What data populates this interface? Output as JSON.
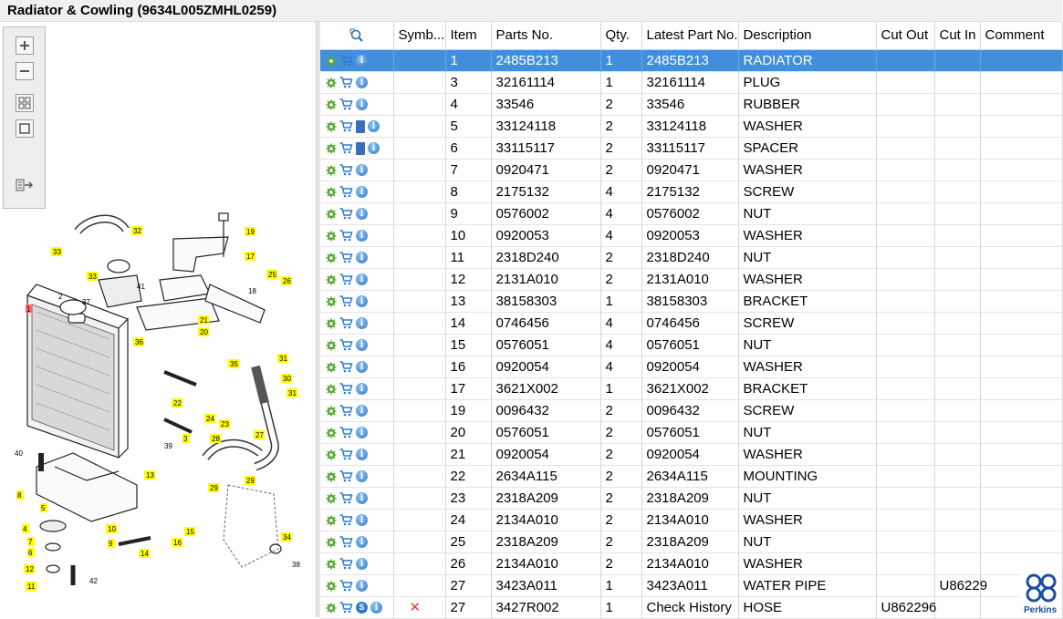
{
  "window": {
    "title": "Radiator & Cowling (9634L005ZMHL0259)"
  },
  "toolbar": {
    "buttons": [
      {
        "name": "zoom-in-button",
        "icon": "zoom-in-icon"
      },
      {
        "name": "zoom-out-button",
        "icon": "zoom-out-icon"
      },
      {
        "name": "fit-all-button",
        "icon": "grid-view-icon"
      },
      {
        "name": "fit-page-button",
        "icon": "page-view-icon"
      },
      {
        "name": "export-button",
        "icon": "export-icon"
      }
    ]
  },
  "drawing": {
    "callouts": [
      "1",
      "2",
      "5",
      "6",
      "7",
      "8",
      "10",
      "11",
      "12",
      "13",
      "15",
      "16",
      "17",
      "19",
      "20",
      "21",
      "22",
      "23",
      "24",
      "25",
      "26",
      "27",
      "28",
      "29",
      "30",
      "31",
      "32",
      "33",
      "34",
      "35",
      "36",
      "37",
      "38",
      "39",
      "40",
      "41",
      "42",
      "4",
      "9",
      "14",
      "18",
      "3"
    ]
  },
  "grid": {
    "headers": {
      "icons": "",
      "symbol": "Symb...",
      "item": "Item",
      "parts_no": "Parts No.",
      "qty": "Qty.",
      "latest": "Latest Part No.",
      "description": "Description",
      "cut_out": "Cut Out",
      "cut_in": "Cut In",
      "comment": "Comment"
    },
    "rows": [
      {
        "item": "1",
        "parts_no": "2485B213",
        "qty": "1",
        "latest": "2485B213",
        "description": "RADIATOR",
        "cut_out": "",
        "cut_in": "",
        "comment": "",
        "book": false,
        "selected": true
      },
      {
        "item": "3",
        "parts_no": "32161114",
        "qty": "1",
        "latest": "32161114",
        "description": "PLUG",
        "cut_out": "",
        "cut_in": "",
        "comment": "",
        "book": false
      },
      {
        "item": "4",
        "parts_no": "33546",
        "qty": "2",
        "latest": "33546",
        "description": "RUBBER",
        "cut_out": "",
        "cut_in": "",
        "comment": "",
        "book": false
      },
      {
        "item": "5",
        "parts_no": "33124118",
        "qty": "2",
        "latest": "33124118",
        "description": "WASHER",
        "cut_out": "",
        "cut_in": "",
        "comment": "",
        "book": true
      },
      {
        "item": "6",
        "parts_no": "33115117",
        "qty": "2",
        "latest": "33115117",
        "description": "SPACER",
        "cut_out": "",
        "cut_in": "",
        "comment": "",
        "book": true
      },
      {
        "item": "7",
        "parts_no": "0920471",
        "qty": "2",
        "latest": "0920471",
        "description": "WASHER",
        "cut_out": "",
        "cut_in": "",
        "comment": "",
        "book": false
      },
      {
        "item": "8",
        "parts_no": "2175132",
        "qty": "4",
        "latest": "2175132",
        "description": "SCREW",
        "cut_out": "",
        "cut_in": "",
        "comment": "",
        "book": false
      },
      {
        "item": "9",
        "parts_no": "0576002",
        "qty": "4",
        "latest": "0576002",
        "description": "NUT",
        "cut_out": "",
        "cut_in": "",
        "comment": "",
        "book": false
      },
      {
        "item": "10",
        "parts_no": "0920053",
        "qty": "4",
        "latest": "0920053",
        "description": "WASHER",
        "cut_out": "",
        "cut_in": "",
        "comment": "",
        "book": false
      },
      {
        "item": "11",
        "parts_no": "2318D240",
        "qty": "2",
        "latest": "2318D240",
        "description": "NUT",
        "cut_out": "",
        "cut_in": "",
        "comment": "",
        "book": false
      },
      {
        "item": "12",
        "parts_no": "2131A010",
        "qty": "2",
        "latest": "2131A010",
        "description": "WASHER",
        "cut_out": "",
        "cut_in": "",
        "comment": "",
        "book": false
      },
      {
        "item": "13",
        "parts_no": "38158303",
        "qty": "1",
        "latest": "38158303",
        "description": "BRACKET",
        "cut_out": "",
        "cut_in": "",
        "comment": "",
        "book": false
      },
      {
        "item": "14",
        "parts_no": "0746456",
        "qty": "4",
        "latest": "0746456",
        "description": "SCREW",
        "cut_out": "",
        "cut_in": "",
        "comment": "",
        "book": false
      },
      {
        "item": "15",
        "parts_no": "0576051",
        "qty": "4",
        "latest": "0576051",
        "description": "NUT",
        "cut_out": "",
        "cut_in": "",
        "comment": "",
        "book": false
      },
      {
        "item": "16",
        "parts_no": "0920054",
        "qty": "4",
        "latest": "0920054",
        "description": "WASHER",
        "cut_out": "",
        "cut_in": "",
        "comment": "",
        "book": false
      },
      {
        "item": "17",
        "parts_no": "3621X002",
        "qty": "1",
        "latest": "3621X002",
        "description": "BRACKET",
        "cut_out": "",
        "cut_in": "",
        "comment": "",
        "book": false
      },
      {
        "item": "19",
        "parts_no": "0096432",
        "qty": "2",
        "latest": "0096432",
        "description": "SCREW",
        "cut_out": "",
        "cut_in": "",
        "comment": "",
        "book": false
      },
      {
        "item": "20",
        "parts_no": "0576051",
        "qty": "2",
        "latest": "0576051",
        "description": "NUT",
        "cut_out": "",
        "cut_in": "",
        "comment": "",
        "book": false
      },
      {
        "item": "21",
        "parts_no": "0920054",
        "qty": "2",
        "latest": "0920054",
        "description": "WASHER",
        "cut_out": "",
        "cut_in": "",
        "comment": "",
        "book": false
      },
      {
        "item": "22",
        "parts_no": "2634A115",
        "qty": "2",
        "latest": "2634A115",
        "description": "MOUNTING",
        "cut_out": "",
        "cut_in": "",
        "comment": "",
        "book": false
      },
      {
        "item": "23",
        "parts_no": "2318A209",
        "qty": "2",
        "latest": "2318A209",
        "description": "NUT",
        "cut_out": "",
        "cut_in": "",
        "comment": "",
        "book": false
      },
      {
        "item": "24",
        "parts_no": "2134A010",
        "qty": "2",
        "latest": "2134A010",
        "description": "WASHER",
        "cut_out": "",
        "cut_in": "",
        "comment": "",
        "book": false
      },
      {
        "item": "25",
        "parts_no": "2318A209",
        "qty": "2",
        "latest": "2318A209",
        "description": "NUT",
        "cut_out": "",
        "cut_in": "",
        "comment": "",
        "book": false
      },
      {
        "item": "26",
        "parts_no": "2134A010",
        "qty": "2",
        "latest": "2134A010",
        "description": "WASHER",
        "cut_out": "",
        "cut_in": "",
        "comment": "",
        "book": false
      },
      {
        "item": "27",
        "parts_no": "3423A011",
        "qty": "1",
        "latest": "3423A011",
        "description": "WATER PIPE",
        "cut_out": "",
        "cut_in": "U86229",
        "comment": "",
        "book": false
      },
      {
        "item": "27",
        "parts_no": "3427R002",
        "qty": "1",
        "latest": "Check History",
        "description": "HOSE",
        "cut_out": "U862296",
        "cut_in": "",
        "comment": "",
        "book": false,
        "superseded": true
      }
    ]
  },
  "branding": {
    "logo_text": "Perkins",
    "logo_color": "#1c4f9c"
  },
  "colors": {
    "selection": "#3f8fdd",
    "callout_fill": "#ffff00",
    "callout_red": "#ff6666"
  }
}
